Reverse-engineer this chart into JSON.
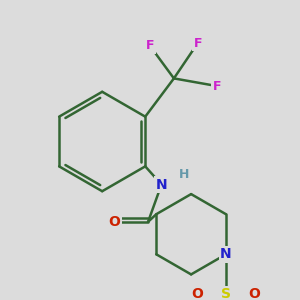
{
  "bg_color": "#dcdcdc",
  "atom_colors": {
    "C": "#1a1a1a",
    "N": "#2222cc",
    "O": "#cc2200",
    "S": "#cccc00",
    "F": "#cc22cc",
    "H": "#6699aa"
  },
  "bond_color": "#336633",
  "bond_width": 1.8,
  "figsize": [
    3.0,
    3.0
  ],
  "dpi": 100,
  "xlim": [
    0,
    300
  ],
  "ylim": [
    0,
    300
  ]
}
